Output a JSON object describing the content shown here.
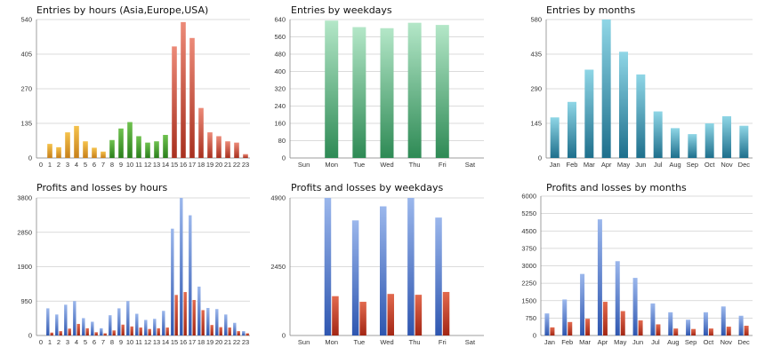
{
  "colors": {
    "gradients": {
      "orange": [
        "#f5c24c",
        "#c7801a"
      ],
      "green": [
        "#6fc24f",
        "#2b7f1c"
      ],
      "red": [
        "#ec8a78",
        "#a8301f"
      ],
      "mint": [
        "#b4e7c8",
        "#2e8a55"
      ],
      "teal": [
        "#8fd6e6",
        "#1e6f8c"
      ],
      "blue": [
        "#9bb7ec",
        "#2e56b0"
      ],
      "darkred": [
        "#e26a4f",
        "#a32614"
      ]
    },
    "grid": "#cfcfcf",
    "axis": "#888888"
  },
  "chart_data": [
    {
      "type": "bar",
      "title": "Entries by hours (Asia,Europe,USA)",
      "categories": [
        "0",
        "1",
        "2",
        "3",
        "4",
        "5",
        "6",
        "7",
        "8",
        "9",
        "10",
        "11",
        "12",
        "13",
        "14",
        "15",
        "16",
        "17",
        "18",
        "19",
        "20",
        "21",
        "22",
        "23"
      ],
      "values": [
        0,
        55,
        42,
        100,
        125,
        65,
        40,
        25,
        70,
        115,
        140,
        85,
        60,
        65,
        90,
        435,
        530,
        468,
        195,
        100,
        85,
        65,
        60,
        15
      ],
      "bar_colors": [
        "orange",
        "orange",
        "orange",
        "orange",
        "orange",
        "orange",
        "orange",
        "orange",
        "green",
        "green",
        "green",
        "green",
        "green",
        "green",
        "green",
        "red",
        "red",
        "red",
        "red",
        "red",
        "red",
        "red",
        "red",
        "red"
      ],
      "yticks": [
        0,
        135,
        270,
        405,
        540
      ],
      "ylim": [
        0,
        540
      ],
      "grid": true
    },
    {
      "type": "bar",
      "title": "Entries by weekdays",
      "categories": [
        "Sun",
        "Mon",
        "Tue",
        "Wed",
        "Thu",
        "Fri",
        "Sat"
      ],
      "values": [
        0,
        635,
        605,
        600,
        625,
        615,
        0
      ],
      "bar_colors": [
        "mint",
        "mint",
        "mint",
        "mint",
        "mint",
        "mint",
        "mint"
      ],
      "yticks": [
        0,
        80,
        160,
        240,
        320,
        400,
        480,
        560,
        640
      ],
      "ylim": [
        0,
        640
      ],
      "grid": true
    },
    {
      "type": "bar",
      "title": "Entries by months",
      "categories": [
        "Jan",
        "Feb",
        "Mar",
        "Apr",
        "May",
        "Jun",
        "Jul",
        "Aug",
        "Sep",
        "Oct",
        "Nov",
        "Dec"
      ],
      "values": [
        170,
        235,
        370,
        580,
        445,
        350,
        195,
        125,
        100,
        145,
        175,
        135
      ],
      "bar_colors": [
        "teal",
        "teal",
        "teal",
        "teal",
        "teal",
        "teal",
        "teal",
        "teal",
        "teal",
        "teal",
        "teal",
        "teal"
      ],
      "yticks": [
        0,
        145,
        290,
        435,
        580
      ],
      "ylim": [
        0,
        580
      ],
      "grid": true
    },
    {
      "type": "bar",
      "title": "Profits and losses by hours",
      "categories": [
        "0",
        "1",
        "2",
        "3",
        "4",
        "5",
        "6",
        "7",
        "8",
        "9",
        "10",
        "11",
        "12",
        "13",
        "14",
        "15",
        "16",
        "17",
        "18",
        "19",
        "20",
        "21",
        "22",
        "23"
      ],
      "series": [
        {
          "values": [
            0,
            750,
            580,
            850,
            950,
            480,
            380,
            200,
            560,
            750,
            950,
            600,
            430,
            460,
            680,
            2950,
            3800,
            3320,
            1350,
            760,
            730,
            580,
            350,
            120
          ],
          "color": "blue"
        },
        {
          "values": [
            0,
            80,
            120,
            190,
            320,
            200,
            90,
            60,
            140,
            300,
            250,
            220,
            180,
            200,
            220,
            1120,
            1200,
            980,
            700,
            290,
            230,
            220,
            120,
            60
          ],
          "color": "darkred"
        }
      ],
      "yticks": [
        0,
        950,
        1900,
        2850,
        3800
      ],
      "ylim": [
        0,
        3800
      ],
      "grid": true
    },
    {
      "type": "bar",
      "title": "Profits and losses by weekdays",
      "categories": [
        "Sun",
        "Mon",
        "Tue",
        "Wed",
        "Thu",
        "Fri",
        "Sat"
      ],
      "series": [
        {
          "values": [
            0,
            4900,
            4100,
            4600,
            4900,
            4200,
            0
          ],
          "color": "blue"
        },
        {
          "values": [
            0,
            1400,
            1200,
            1480,
            1450,
            1550,
            0
          ],
          "color": "darkred"
        }
      ],
      "yticks": [
        0,
        2450,
        4900
      ],
      "ylim": [
        0,
        4900
      ],
      "grid": true
    },
    {
      "type": "bar",
      "title": "Profits and losses by months",
      "categories": [
        "Jan",
        "Feb",
        "Mar",
        "Apr",
        "May",
        "Jun",
        "Jul",
        "Aug",
        "Sep",
        "Oct",
        "Nov",
        "Dec"
      ],
      "series": [
        {
          "values": [
            950,
            1550,
            2650,
            5000,
            3200,
            2480,
            1380,
            1000,
            680,
            1000,
            1250,
            850
          ],
          "color": "blue"
        },
        {
          "values": [
            350,
            580,
            720,
            1450,
            1050,
            650,
            480,
            300,
            280,
            300,
            380,
            420
          ],
          "color": "darkred"
        }
      ],
      "yticks": [
        0,
        750,
        1500,
        2250,
        3000,
        3750,
        4500,
        5250,
        6000
      ],
      "ylim": [
        0,
        6000
      ],
      "grid": true
    }
  ]
}
